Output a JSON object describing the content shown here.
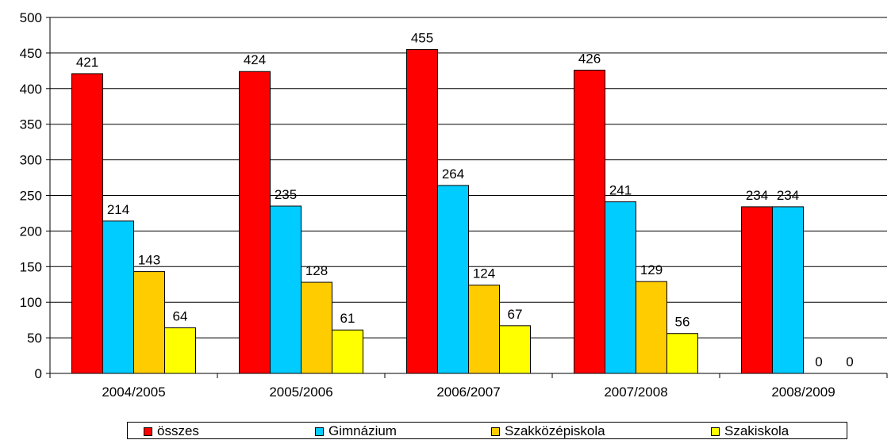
{
  "chart_data": {
    "type": "bar",
    "title": "",
    "xlabel": "",
    "ylabel": "",
    "ylim": [
      0,
      500
    ],
    "yticks": [
      0,
      50,
      100,
      150,
      200,
      250,
      300,
      350,
      400,
      450,
      500
    ],
    "grid": true,
    "legend_position": "bottom",
    "categories": [
      "2004/2005",
      "2005/2006",
      "2006/2007",
      "2007/2008",
      "2008/2009"
    ],
    "series": [
      {
        "name": "összes",
        "color": "#ff0000",
        "values": [
          421,
          424,
          455,
          426,
          234
        ]
      },
      {
        "name": "Gimnázium",
        "color": "#00ccff",
        "values": [
          214,
          235,
          264,
          241,
          234
        ]
      },
      {
        "name": "Szakközépiskola",
        "color": "#ffcc00",
        "values": [
          143,
          128,
          124,
          129,
          0
        ]
      },
      {
        "name": "Szakiskola",
        "color": "#ffff00",
        "values": [
          64,
          61,
          67,
          56,
          0
        ]
      }
    ],
    "data_labels": [
      [
        "421",
        "214",
        "143",
        "64"
      ],
      [
        "424",
        "235",
        "128",
        "61"
      ],
      [
        "455",
        "264",
        "124",
        "67"
      ],
      [
        "426",
        "241",
        "129",
        "56"
      ],
      [
        "234",
        "234",
        "0",
        "0"
      ]
    ]
  }
}
